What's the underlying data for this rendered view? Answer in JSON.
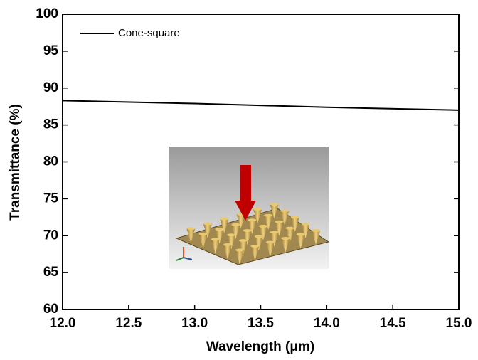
{
  "chart_data": {
    "type": "line",
    "x_label": "Wavelength (μm)",
    "y_label": "Transmittance (%)",
    "x": [
      12.0,
      13.0,
      14.0,
      15.0
    ],
    "series": [
      {
        "name": "Cone-square",
        "color": "#000000",
        "values": [
          88.3,
          87.9,
          87.4,
          87.0
        ]
      }
    ],
    "xlim": [
      12.0,
      15.0
    ],
    "xticks": [
      {
        "value": 12.0,
        "label": "12.0"
      },
      {
        "value": 12.5,
        "label": "12.5"
      },
      {
        "value": 13.0,
        "label": "13.0"
      },
      {
        "value": 13.5,
        "label": "13.5"
      },
      {
        "value": 14.0,
        "label": "14.0"
      },
      {
        "value": 14.5,
        "label": "14.5"
      },
      {
        "value": 15.0,
        "label": "15.0"
      }
    ],
    "ylim": [
      60,
      100
    ],
    "yticks": [
      60,
      65,
      70,
      75,
      80,
      85,
      90,
      95,
      100
    ],
    "legend": "upper left"
  }
}
